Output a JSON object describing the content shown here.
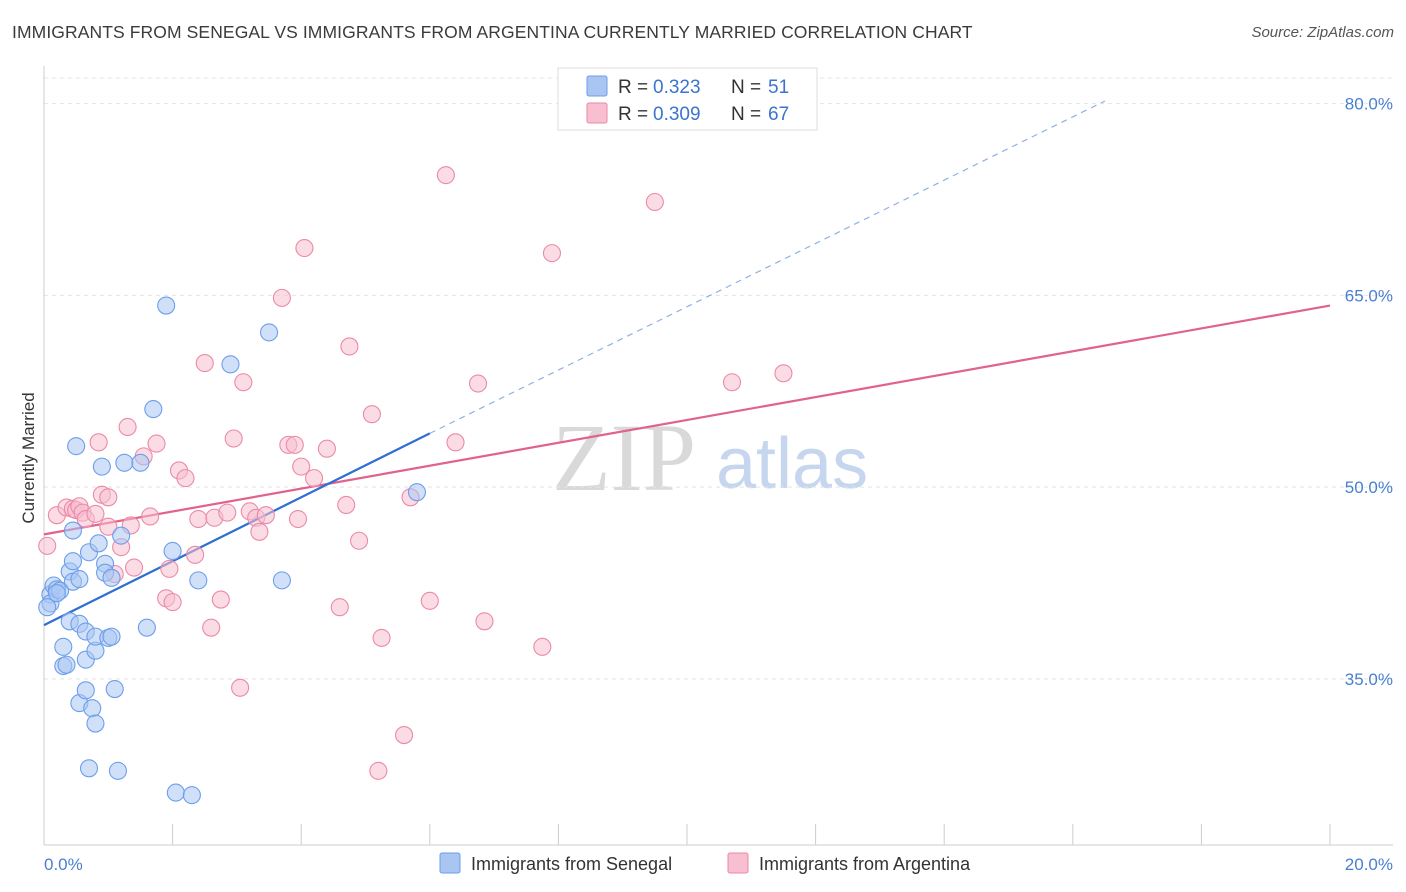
{
  "title": "IMMIGRANTS FROM SENEGAL VS IMMIGRANTS FROM ARGENTINA CURRENTLY MARRIED CORRELATION CHART",
  "source": "Source: ZipAtlas.com",
  "watermark": {
    "zip": "ZIP",
    "atlas": "atlas"
  },
  "legend": {
    "r_label": "R =",
    "n_label": "N =",
    "rows": [
      {
        "r": "0.323",
        "n": "51",
        "color": "#6d9eeb"
      },
      {
        "r": "0.309",
        "n": "67",
        "color": "#f29bb5"
      }
    ]
  },
  "bottom_legend": [
    "Immigrants from Senegal",
    "Immigrants from Argentina"
  ],
  "colors": {
    "senegal_fill": "#a9c6f2",
    "senegal_stroke": "#6d9eeb",
    "senegal_line": "#2e6fd0",
    "argentina_fill": "#f7bfd0",
    "argentina_stroke": "#ea8aa8",
    "argentina_line": "#e0628d"
  },
  "chart_data": {
    "type": "scatter",
    "title": "IMMIGRANTS FROM SENEGAL VS IMMIGRANTS FROM ARGENTINA CURRENTLY MARRIED CORRELATION CHART",
    "xlabel": "",
    "ylabel": "Currently Married",
    "xlim": [
      0,
      20
    ],
    "ylim": [
      22,
      82
    ],
    "x_tick_labels": [
      "0.0%",
      "20.0%"
    ],
    "y_ticks": [
      35,
      50,
      65,
      80
    ],
    "y_tick_labels": [
      "35.0%",
      "50.0%",
      "65.0%",
      "80.0%"
    ],
    "grid": true,
    "legend_position": "top-center",
    "series": [
      {
        "name": "Immigrants from Senegal",
        "points": [
          [
            0.1,
            41.6
          ],
          [
            0.1,
            40.9
          ],
          [
            0.15,
            42.3
          ],
          [
            0.2,
            42.0
          ],
          [
            0.25,
            41.9
          ],
          [
            0.3,
            37.5
          ],
          [
            0.3,
            36.0
          ],
          [
            0.35,
            36.1
          ],
          [
            0.4,
            39.5
          ],
          [
            0.4,
            43.4
          ],
          [
            0.45,
            44.2
          ],
          [
            0.45,
            42.6
          ],
          [
            0.45,
            46.6
          ],
          [
            0.5,
            53.2
          ],
          [
            0.55,
            39.3
          ],
          [
            0.55,
            42.8
          ],
          [
            0.55,
            33.1
          ],
          [
            0.65,
            38.7
          ],
          [
            0.65,
            34.1
          ],
          [
            0.65,
            36.5
          ],
          [
            0.7,
            44.9
          ],
          [
            0.7,
            28.0
          ],
          [
            0.75,
            32.7
          ],
          [
            0.8,
            37.2
          ],
          [
            0.8,
            38.3
          ],
          [
            0.8,
            31.5
          ],
          [
            0.85,
            45.6
          ],
          [
            0.9,
            51.6
          ],
          [
            0.95,
            44.0
          ],
          [
            0.95,
            43.3
          ],
          [
            1.0,
            38.2
          ],
          [
            1.05,
            38.3
          ],
          [
            1.05,
            42.9
          ],
          [
            1.1,
            34.2
          ],
          [
            1.15,
            27.8
          ],
          [
            1.2,
            46.2
          ],
          [
            1.25,
            51.9
          ],
          [
            1.5,
            51.9
          ],
          [
            1.6,
            39.0
          ],
          [
            1.7,
            56.1
          ],
          [
            1.9,
            64.2
          ],
          [
            2.0,
            45.0
          ],
          [
            2.05,
            26.1
          ],
          [
            2.3,
            25.9
          ],
          [
            2.4,
            42.7
          ],
          [
            2.9,
            59.6
          ],
          [
            3.5,
            62.1
          ],
          [
            3.7,
            42.7
          ],
          [
            5.8,
            49.6
          ],
          [
            0.05,
            40.6
          ],
          [
            0.2,
            41.7
          ]
        ],
        "trend": {
          "x": [
            0,
            6.0
          ],
          "y": [
            39.2,
            54.2
          ],
          "dashed_extension": {
            "x": [
              6.0,
              16.5
            ],
            "y": [
              54.2,
              80.2
            ]
          }
        }
      },
      {
        "name": "Immigrants from Argentina",
        "points": [
          [
            0.05,
            45.4
          ],
          [
            0.2,
            47.8
          ],
          [
            0.35,
            48.4
          ],
          [
            0.45,
            48.3
          ],
          [
            0.5,
            48.2
          ],
          [
            0.55,
            48.5
          ],
          [
            0.6,
            48.0
          ],
          [
            0.65,
            47.5
          ],
          [
            0.8,
            47.9
          ],
          [
            0.85,
            53.5
          ],
          [
            0.9,
            49.4
          ],
          [
            1.0,
            49.2
          ],
          [
            1.0,
            46.9
          ],
          [
            1.1,
            43.2
          ],
          [
            1.2,
            45.3
          ],
          [
            1.3,
            54.7
          ],
          [
            1.35,
            47.0
          ],
          [
            1.4,
            43.7
          ],
          [
            1.55,
            52.4
          ],
          [
            1.65,
            47.7
          ],
          [
            1.75,
            53.4
          ],
          [
            1.9,
            41.3
          ],
          [
            1.95,
            43.6
          ],
          [
            2.0,
            41.0
          ],
          [
            2.1,
            51.3
          ],
          [
            2.2,
            50.7
          ],
          [
            2.35,
            44.7
          ],
          [
            2.4,
            47.5
          ],
          [
            2.5,
            59.7
          ],
          [
            2.6,
            39.0
          ],
          [
            2.65,
            47.6
          ],
          [
            2.75,
            41.2
          ],
          [
            2.85,
            48.0
          ],
          [
            2.95,
            53.8
          ],
          [
            3.05,
            34.3
          ],
          [
            3.1,
            58.2
          ],
          [
            3.2,
            48.1
          ],
          [
            3.3,
            47.6
          ],
          [
            3.35,
            46.5
          ],
          [
            3.45,
            47.8
          ],
          [
            3.7,
            64.8
          ],
          [
            3.8,
            53.3
          ],
          [
            3.9,
            53.3
          ],
          [
            3.95,
            47.5
          ],
          [
            4.0,
            51.6
          ],
          [
            4.05,
            68.7
          ],
          [
            4.2,
            50.7
          ],
          [
            4.4,
            53.0
          ],
          [
            4.6,
            40.6
          ],
          [
            4.7,
            48.6
          ],
          [
            4.75,
            61.0
          ],
          [
            4.9,
            45.8
          ],
          [
            5.1,
            55.7
          ],
          [
            5.2,
            27.8
          ],
          [
            5.25,
            38.2
          ],
          [
            5.6,
            30.6
          ],
          [
            5.7,
            49.2
          ],
          [
            6.0,
            41.1
          ],
          [
            6.25,
            74.4
          ],
          [
            6.4,
            53.5
          ],
          [
            6.75,
            58.1
          ],
          [
            6.85,
            39.5
          ],
          [
            7.75,
            37.5
          ],
          [
            7.9,
            68.3
          ],
          [
            9.5,
            72.3
          ],
          [
            10.7,
            58.2
          ],
          [
            11.5,
            58.9
          ]
        ],
        "trend": {
          "x": [
            0,
            20
          ],
          "y": [
            46.3,
            64.2
          ]
        }
      }
    ]
  }
}
